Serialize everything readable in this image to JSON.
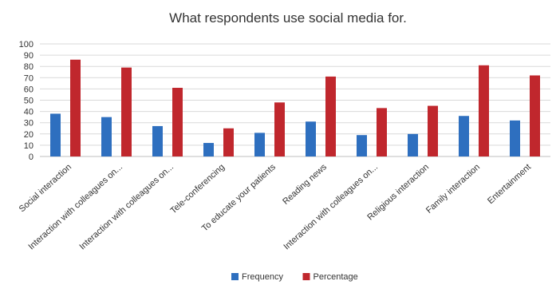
{
  "chart_data": {
    "type": "bar",
    "title": "What respondents use social media for.",
    "xlabel": "",
    "ylabel": "",
    "ylim": [
      0,
      100
    ],
    "yticks": [
      0,
      10,
      20,
      30,
      40,
      50,
      60,
      70,
      80,
      90,
      100
    ],
    "grid": true,
    "legend_position": "bottom",
    "categories": [
      "Social interaction",
      "Interaction with colleagues on...",
      "Interaction with colleagues on...",
      "Tele-conferencing",
      "To educate your patients",
      "Reading news",
      "Interaction with colleagues on...",
      "Religious interaction",
      "Family interaction",
      "Entertainment"
    ],
    "series": [
      {
        "name": "Frequency",
        "color": "#2e6fbf",
        "values": [
          38,
          35,
          27,
          12,
          21,
          31,
          19,
          20,
          36,
          32
        ]
      },
      {
        "name": "Percentage",
        "color": "#c0272d",
        "values": [
          86,
          79,
          61,
          25,
          48,
          71,
          43,
          45,
          81,
          72
        ]
      }
    ]
  }
}
